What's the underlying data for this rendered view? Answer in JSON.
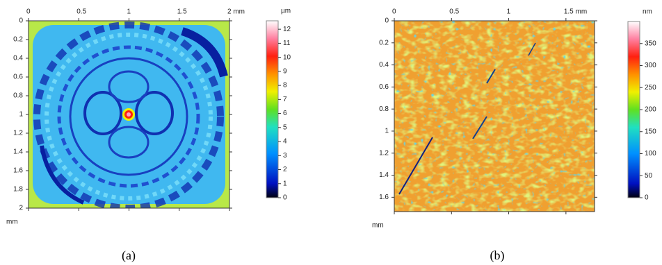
{
  "chart_data": [
    {
      "type": "heatmap",
      "caption": "(a)",
      "y_label": "mm",
      "y_inverted": true,
      "xlim": [
        0,
        2
      ],
      "xticks": [
        0,
        0.5,
        1,
        1.5,
        {
          "value": 2,
          "label": "2 mm"
        }
      ],
      "ylim": [
        0,
        2
      ],
      "yticks": [
        0,
        0.2,
        0.4,
        0.6,
        0.8,
        1,
        1.2,
        1.4,
        1.6,
        1.8,
        2
      ],
      "colorbar_label": "µm",
      "colorbar_lim": [
        0,
        12.6
      ],
      "colorbar_ticks": [
        0,
        1,
        2,
        3,
        4,
        5,
        6,
        7,
        8,
        9,
        10,
        11,
        12
      ]
    },
    {
      "type": "heatmap",
      "caption": "(b)",
      "y_label": "mm",
      "y_inverted": true,
      "xlim": [
        0,
        1.75
      ],
      "xticks": [
        0,
        0.5,
        1,
        {
          "value": 1.5,
          "label": "1.5 mm"
        }
      ],
      "ylim": [
        0,
        1.73
      ],
      "yticks": [
        0,
        0.2,
        0.4,
        0.6,
        0.8,
        1,
        1.2,
        1.4,
        1.6
      ],
      "colorbar_label": "nm",
      "colorbar_lim": [
        0,
        400
      ],
      "colorbar_ticks": [
        0,
        50,
        100,
        150,
        200,
        250,
        300,
        350
      ]
    }
  ]
}
